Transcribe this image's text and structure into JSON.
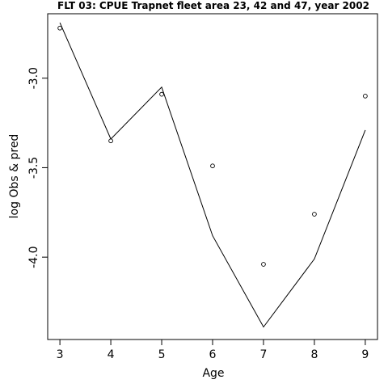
{
  "chart_data": {
    "type": "line",
    "title": "FLT 03: CPUE Trapnet fleet area 23, 42 and 47, year 2002",
    "xlabel": "Age",
    "ylabel": "log Obs & pred",
    "x": [
      3,
      4,
      5,
      6,
      7,
      8,
      9
    ],
    "x_ticks": [
      "3",
      "4",
      "5",
      "6",
      "7",
      "8",
      "9"
    ],
    "y_ticks": [
      "-3.0",
      "-3.5",
      "-4.0"
    ],
    "y_tick_values": [
      -3.0,
      -3.5,
      -4.0
    ],
    "xlim": [
      2.76,
      9.24
    ],
    "ylim": [
      -4.46,
      -2.64
    ],
    "series": [
      {
        "style": "points",
        "marker": "open-circle",
        "values": [
          -2.72,
          -3.35,
          -3.09,
          -3.49,
          -4.04,
          -3.76,
          -3.1
        ]
      },
      {
        "style": "line",
        "values": [
          -2.69,
          -3.34,
          -3.05,
          -3.88,
          -4.39,
          -4.01,
          -3.29
        ]
      }
    ],
    "grid": false,
    "legend": "none",
    "colors": {
      "line": "#000000",
      "points": "#000000",
      "frame": "#000000"
    }
  }
}
